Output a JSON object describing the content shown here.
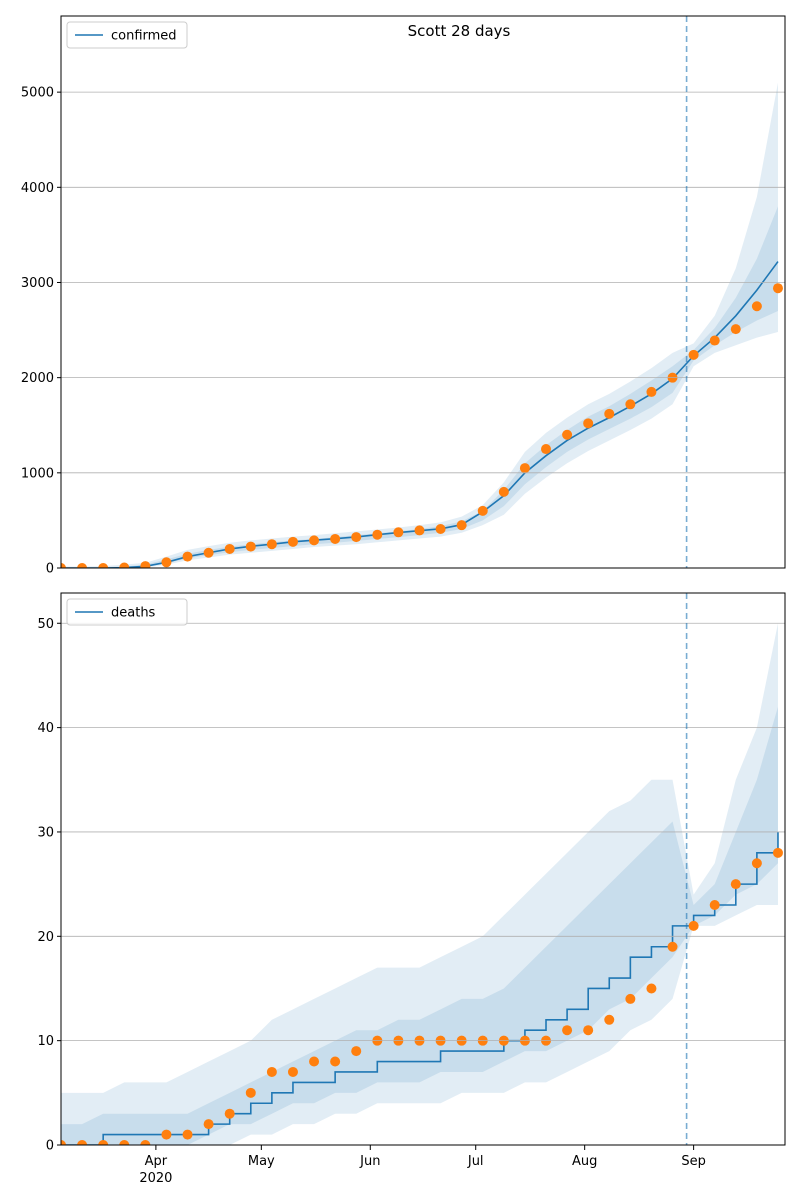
{
  "chart_data": [
    {
      "type": "line",
      "title": "Scott 28 days",
      "legend": "upper left",
      "grid": "y",
      "step": false,
      "xlim": [
        65,
        271
      ],
      "ylim": [
        0,
        5800
      ],
      "yticks": [
        0,
        1000,
        2000,
        3000,
        4000,
        5000
      ],
      "vline_x": 243,
      "x": [
        65,
        71,
        77,
        83,
        89,
        95,
        101,
        107,
        113,
        119,
        125,
        131,
        137,
        143,
        149,
        155,
        161,
        167,
        173,
        179,
        185,
        191,
        197,
        203,
        209,
        215,
        221,
        227,
        233,
        239,
        245,
        251,
        257,
        263,
        269
      ],
      "series": [
        {
          "name": "confirmed",
          "color": "#1f77b4",
          "style": "line",
          "values": [
            0,
            0,
            0,
            4,
            18,
            60,
            120,
            160,
            200,
            228,
            250,
            275,
            292,
            308,
            326,
            350,
            372,
            392,
            412,
            455,
            590,
            760,
            1000,
            1180,
            1340,
            1470,
            1580,
            1700,
            1830,
            1990,
            2230,
            2420,
            2650,
            2920,
            3220
          ]
        },
        {
          "color": "#ff7f0e",
          "style": "scatter",
          "values": [
            0,
            0,
            0,
            5,
            20,
            60,
            120,
            160,
            200,
            225,
            250,
            275,
            290,
            305,
            325,
            350,
            375,
            395,
            410,
            450,
            600,
            800,
            1050,
            1250,
            1400,
            1520,
            1620,
            1720,
            1850,
            2000,
            2240,
            2390,
            2510,
            2750,
            2940
          ]
        }
      ],
      "bands": [
        {
          "color": "#1f77b4",
          "lower": [
            0,
            0,
            0,
            0,
            5,
            35,
            80,
            110,
            140,
            160,
            180,
            200,
            220,
            235,
            250,
            270,
            290,
            310,
            330,
            370,
            450,
            560,
            780,
            950,
            1100,
            1230,
            1340,
            1450,
            1570,
            1720,
            2120,
            2260,
            2340,
            2420,
            2480
          ],
          "upper": [
            15,
            15,
            20,
            35,
            55,
            120,
            190,
            230,
            265,
            290,
            310,
            330,
            345,
            365,
            385,
            405,
            425,
            450,
            480,
            540,
            660,
            900,
            1220,
            1420,
            1580,
            1720,
            1830,
            1960,
            2100,
            2260,
            2360,
            2650,
            3150,
            3900,
            5100
          ]
        },
        {
          "color": "#1f77b4",
          "lower": [
            0,
            0,
            0,
            0,
            10,
            50,
            100,
            135,
            165,
            190,
            210,
            230,
            250,
            265,
            285,
            305,
            325,
            345,
            370,
            410,
            500,
            650,
            880,
            1060,
            1220,
            1350,
            1460,
            1570,
            1690,
            1840,
            2180,
            2340,
            2480,
            2600,
            2700
          ],
          "upper": [
            5,
            5,
            8,
            15,
            35,
            90,
            150,
            190,
            225,
            250,
            270,
            290,
            305,
            325,
            345,
            365,
            385,
            410,
            440,
            490,
            600,
            820,
            1100,
            1290,
            1450,
            1590,
            1700,
            1830,
            1970,
            2120,
            2290,
            2520,
            2840,
            3250,
            3800
          ]
        }
      ]
    },
    {
      "type": "line",
      "legend": "upper left",
      "grid": "y",
      "step": true,
      "xlim": [
        65,
        271
      ],
      "ylim": [
        0,
        52.9
      ],
      "yticks": [
        0,
        10,
        20,
        30,
        40,
        50
      ],
      "vline_x": 243,
      "xticks": [
        {
          "value": 92,
          "label": "Apr"
        },
        {
          "value": 122,
          "label": "May"
        },
        {
          "value": 153,
          "label": "Jun"
        },
        {
          "value": 183,
          "label": "Jul"
        },
        {
          "value": 214,
          "label": "Aug"
        },
        {
          "value": 245,
          "label": "Sep"
        }
      ],
      "year_label": "2020",
      "x": [
        65,
        71,
        77,
        83,
        89,
        95,
        101,
        107,
        113,
        119,
        125,
        131,
        137,
        143,
        149,
        155,
        161,
        167,
        173,
        179,
        185,
        191,
        197,
        203,
        209,
        215,
        221,
        227,
        233,
        239,
        245,
        251,
        257,
        263,
        269
      ],
      "series": [
        {
          "name": "deaths",
          "color": "#1f77b4",
          "style": "line",
          "values": [
            0,
            0,
            1,
            1,
            1,
            1,
            1,
            2,
            3,
            4,
            5,
            6,
            6,
            7,
            7,
            8,
            8,
            8,
            9,
            9,
            9,
            10,
            11,
            12,
            13,
            15,
            16,
            18,
            19,
            21,
            22,
            23,
            25,
            28,
            30
          ]
        },
        {
          "color": "#ff7f0e",
          "style": "scatter",
          "values": [
            0,
            0,
            0,
            0,
            0,
            1,
            1,
            2,
            3,
            5,
            7,
            7,
            8,
            8,
            9,
            10,
            10,
            10,
            10,
            10,
            10,
            10,
            10,
            10,
            11,
            11,
            12,
            14,
            15,
            19,
            21,
            23,
            25,
            27,
            28
          ]
        }
      ],
      "bands": [
        {
          "color": "#1f77b4",
          "lower": [
            0,
            0,
            0,
            0,
            0,
            0,
            0,
            0,
            0,
            1,
            1,
            2,
            2,
            3,
            3,
            4,
            4,
            4,
            4,
            5,
            5,
            5,
            6,
            6,
            7,
            8,
            9,
            11,
            12,
            14,
            21,
            21,
            22,
            23,
            23
          ],
          "upper": [
            5,
            5,
            5,
            6,
            6,
            6,
            7,
            8,
            9,
            10,
            12,
            13,
            14,
            15,
            16,
            17,
            17,
            17,
            18,
            19,
            20,
            22,
            24,
            26,
            28,
            30,
            32,
            33,
            35,
            35,
            24,
            27,
            35,
            40,
            50
          ]
        },
        {
          "color": "#1f77b4",
          "lower": [
            0,
            0,
            0,
            0,
            0,
            0,
            0,
            1,
            2,
            2,
            3,
            4,
            4,
            5,
            5,
            6,
            6,
            6,
            7,
            7,
            7,
            8,
            9,
            9,
            10,
            11,
            13,
            14,
            16,
            18,
            21,
            22,
            24,
            25,
            27
          ],
          "upper": [
            2,
            2,
            3,
            3,
            3,
            3,
            3,
            4,
            5,
            6,
            7,
            8,
            9,
            10,
            11,
            11,
            12,
            12,
            13,
            14,
            14,
            15,
            17,
            19,
            21,
            23,
            25,
            27,
            29,
            31,
            23,
            25,
            30,
            35,
            42
          ]
        }
      ]
    }
  ]
}
